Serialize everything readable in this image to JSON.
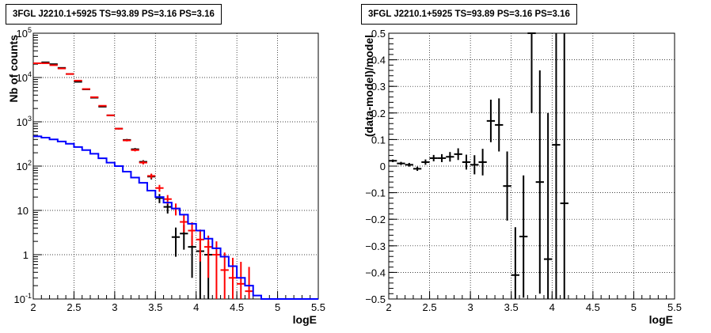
{
  "panels": [
    {
      "title": "3FGL J2210.1+5925 TS=93.89 PS=3.16 PS=3.16"
    },
    {
      "title": "3FGL J2210.1+5925 TS=93.89 PS=3.16 PS=3.16"
    }
  ],
  "chart_data": [
    {
      "type": "line",
      "title": "3FGL J2210.1+5925 TS=93.89 PS=3.16 PS=3.16",
      "xlabel": "logE",
      "ylabel": "Nb of counts",
      "xlim": [
        2,
        5.5
      ],
      "ylim": [
        0.1,
        100000
      ],
      "yscale": "log",
      "grid": true,
      "x_ticks": [
        "2",
        "2.5",
        "3",
        "3.5",
        "4",
        "4.5",
        "5",
        "5.5"
      ],
      "y_ticks": [
        "10^-1",
        "1",
        "10",
        "10^2",
        "10^3",
        "10^4",
        "10^5"
      ],
      "series": [
        {
          "color": "#000000",
          "style": "errorbar",
          "x": [
            2.15,
            2.25,
            2.35,
            2.45,
            2.55,
            2.65,
            2.75,
            2.85,
            2.95,
            3.05,
            3.15,
            3.25,
            3.35,
            3.45,
            3.55,
            3.65,
            3.75,
            3.85,
            3.95,
            4.05,
            4.15
          ],
          "y": [
            22000,
            20000,
            16500,
            12000,
            8000,
            5400,
            3500,
            2200,
            1400,
            700,
            390,
            240,
            125,
            58,
            19,
            12,
            2.5,
            3,
            1.5,
            1.2,
            1
          ],
          "err": [
            150,
            140,
            130,
            110,
            90,
            75,
            60,
            47,
            38,
            27,
            20,
            16,
            11,
            8,
            4.4,
            3.5,
            1.6,
            1.7,
            1.2,
            1.1,
            1
          ]
        },
        {
          "color": "#ff0000",
          "style": "errorbar",
          "x": [
            2.05,
            2.15,
            2.25,
            2.35,
            2.45,
            2.55,
            2.65,
            2.75,
            2.85,
            2.95,
            3.05,
            3.15,
            3.25,
            3.35,
            3.45,
            3.55,
            3.65,
            3.75,
            3.85,
            3.95,
            4.05,
            4.15,
            4.25,
            4.35,
            4.45,
            4.55,
            4.65
          ],
          "y": [
            21000,
            21000,
            19000,
            16000,
            12000,
            8500,
            5500,
            3600,
            2300,
            1400,
            700,
            380,
            230,
            120,
            60,
            32,
            18,
            11,
            5.5,
            3.5,
            2.2,
            1.5,
            1,
            0.45,
            0.3,
            0.22,
            0.15
          ],
          "err": [
            145,
            145,
            138,
            126,
            110,
            92,
            74,
            60,
            48,
            37,
            26,
            19,
            15,
            11,
            7.7,
            5.7,
            4.2,
            3.3,
            2.3,
            1.9,
            1.5,
            1.2,
            1,
            0.67,
            0.55,
            0.47,
            0.38
          ]
        },
        {
          "color": "#0000ff",
          "style": "step",
          "x": [
            2.05,
            2.15,
            2.25,
            2.35,
            2.45,
            2.55,
            2.65,
            2.75,
            2.85,
            2.95,
            3.05,
            3.15,
            3.25,
            3.35,
            3.45,
            3.55,
            3.65,
            3.75,
            3.85,
            3.95,
            4.05,
            4.15,
            4.25,
            4.35,
            4.45,
            4.55,
            4.65,
            4.75,
            4.85,
            4.95,
            5.05,
            5.15,
            5.25,
            5.35,
            5.45
          ],
          "y": [
            470,
            440,
            400,
            360,
            320,
            270,
            230,
            190,
            150,
            120,
            100,
            75,
            55,
            42,
            28,
            20,
            15,
            11,
            8,
            5,
            3.5,
            2.3,
            1.4,
            0.9,
            0.55,
            0.3,
            0.2,
            0.12,
            0.1,
            0.1,
            0.1,
            0.1,
            0.1,
            0.1,
            0.1
          ]
        }
      ]
    },
    {
      "type": "line",
      "title": "3FGL J2210.1+5925 TS=93.89 PS=3.16 PS=3.16",
      "xlabel": "logE",
      "ylabel": "(data-model)/model",
      "xlim": [
        2,
        5.5
      ],
      "ylim": [
        -0.5,
        0.5
      ],
      "grid": true,
      "x_ticks": [
        "2",
        "2.5",
        "3",
        "3.5",
        "4",
        "4.5",
        "5",
        "5.5"
      ],
      "y_ticks": [
        "−0.5",
        "−0.4",
        "−0.3",
        "−0.2",
        "−0.1",
        "0",
        "0.1",
        "0.2",
        "0.3",
        "0.4",
        "0.5"
      ],
      "series": [
        {
          "color": "#000000",
          "style": "errorbar",
          "x": [
            2.05,
            2.15,
            2.25,
            2.35,
            2.45,
            2.55,
            2.65,
            2.75,
            2.85,
            2.95,
            3.05,
            3.15,
            3.25,
            3.35,
            3.45,
            3.55,
            3.65,
            3.75,
            3.85,
            3.95,
            4.05,
            4.15
          ],
          "y": [
            0.02,
            0.01,
            0.005,
            -0.01,
            0.015,
            0.03,
            0.03,
            0.035,
            0.045,
            0.015,
            0.005,
            0.015,
            0.17,
            0.155,
            -0.075,
            -0.41,
            -0.265,
            0.5,
            -0.06,
            -0.35,
            0.08,
            -0.14
          ],
          "err": [
            0.005,
            0.006,
            0.007,
            0.008,
            0.01,
            0.012,
            0.015,
            0.018,
            0.022,
            0.028,
            0.036,
            0.05,
            0.08,
            0.1,
            0.13,
            0.18,
            0.23,
            0.3,
            0.42,
            0.55,
            0.7,
            0.85
          ]
        }
      ]
    }
  ]
}
